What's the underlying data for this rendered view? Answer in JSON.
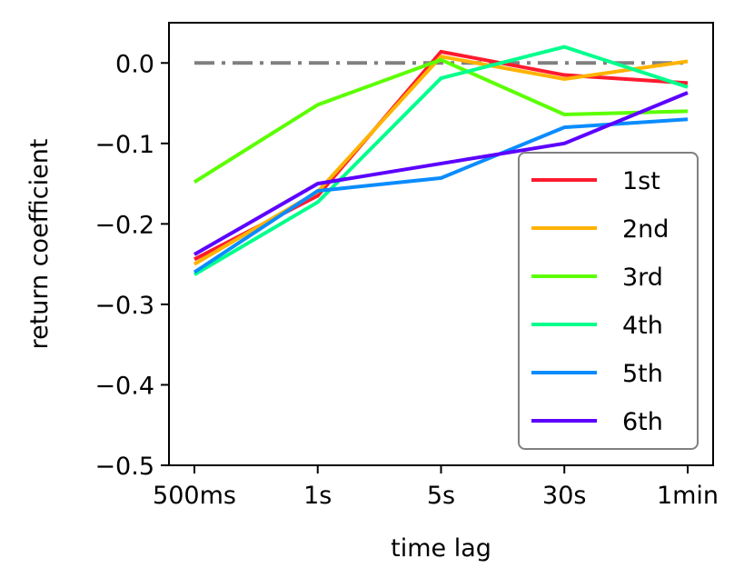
{
  "chart_data": {
    "type": "line",
    "xlabel": "time lag",
    "ylabel": "return coefficient",
    "categories": [
      "500ms",
      "1s",
      "5s",
      "30s",
      "1min"
    ],
    "ylim": [
      -0.5,
      0.05
    ],
    "yticks": [
      0.0,
      -0.1,
      -0.2,
      -0.3,
      -0.4,
      -0.5
    ],
    "ytick_labels": [
      "0.0",
      "−0.1",
      "−0.2",
      "−0.3",
      "−0.4",
      "−0.5"
    ],
    "grid": false,
    "legend_placement": "lower-right",
    "reference_line": {
      "value": 0.0,
      "style": "dash-dot",
      "color": "#808080"
    },
    "series": [
      {
        "name": "1st",
        "color": "#ff1a2e",
        "values": [
          -0.244,
          -0.165,
          0.014,
          -0.015,
          -0.025
        ]
      },
      {
        "name": "2nd",
        "color": "#ffb300",
        "values": [
          -0.25,
          -0.16,
          0.008,
          -0.02,
          0.002
        ]
      },
      {
        "name": "3rd",
        "color": "#5cff00",
        "values": [
          -0.148,
          -0.052,
          0.004,
          -0.064,
          -0.06
        ]
      },
      {
        "name": "4th",
        "color": "#00ff8c",
        "values": [
          -0.263,
          -0.173,
          -0.019,
          0.02,
          -0.03
        ]
      },
      {
        "name": "5th",
        "color": "#0a8cff",
        "values": [
          -0.26,
          -0.159,
          -0.143,
          -0.08,
          -0.07
        ]
      },
      {
        "name": "6th",
        "color": "#5c00ff",
        "values": [
          -0.238,
          -0.15,
          -0.125,
          -0.1,
          -0.037
        ]
      }
    ]
  }
}
